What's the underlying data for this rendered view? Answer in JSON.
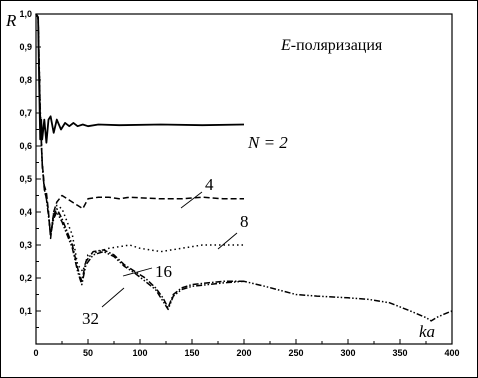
{
  "chart_data": {
    "type": "line",
    "title": "",
    "xlabel": "ka",
    "ylabel": "R",
    "xlim": [
      0,
      400
    ],
    "ylim": [
      0,
      1.0
    ],
    "grid": false,
    "x_ticks": [
      "0",
      "50",
      "100",
      "150",
      "200",
      "250",
      "300",
      "350",
      "400"
    ],
    "y_ticks": [
      "0,1",
      "0,2",
      "0,3",
      "0,4",
      "0,5",
      "0,6",
      "0,7",
      "0,8",
      "0,9",
      "1,0"
    ],
    "annotations": {
      "polarization": "E-поляризация",
      "n2": "N = 2",
      "n4": "4",
      "n8": "8",
      "n16": "16",
      "n32": "32"
    },
    "series": [
      {
        "name": "N = 2",
        "style": "solid",
        "points": [
          [
            0,
            1.0
          ],
          [
            2,
            0.99
          ],
          [
            3,
            0.8
          ],
          [
            4,
            0.62
          ],
          [
            5,
            0.68
          ],
          [
            6,
            0.62
          ],
          [
            8,
            0.68
          ],
          [
            10,
            0.61
          ],
          [
            12,
            0.68
          ],
          [
            14,
            0.69
          ],
          [
            17,
            0.64
          ],
          [
            20,
            0.68
          ],
          [
            24,
            0.65
          ],
          [
            28,
            0.67
          ],
          [
            32,
            0.66
          ],
          [
            36,
            0.67
          ],
          [
            40,
            0.66
          ],
          [
            45,
            0.665
          ],
          [
            50,
            0.66
          ],
          [
            60,
            0.665
          ],
          [
            80,
            0.663
          ],
          [
            120,
            0.665
          ],
          [
            160,
            0.663
          ],
          [
            200,
            0.665
          ]
        ]
      },
      {
        "name": "4",
        "style": "dashed",
        "points": [
          [
            0,
            1.0
          ],
          [
            2,
            0.99
          ],
          [
            4,
            0.7
          ],
          [
            6,
            0.55
          ],
          [
            8,
            0.48
          ],
          [
            10,
            0.46
          ],
          [
            12,
            0.4
          ],
          [
            14,
            0.32
          ],
          [
            17,
            0.4
          ],
          [
            20,
            0.43
          ],
          [
            25,
            0.45
          ],
          [
            30,
            0.44
          ],
          [
            35,
            0.43
          ],
          [
            40,
            0.42
          ],
          [
            45,
            0.41
          ],
          [
            50,
            0.44
          ],
          [
            60,
            0.445
          ],
          [
            70,
            0.445
          ],
          [
            80,
            0.44
          ],
          [
            90,
            0.445
          ],
          [
            100,
            0.443
          ],
          [
            120,
            0.44
          ],
          [
            140,
            0.44
          ],
          [
            160,
            0.445
          ],
          [
            180,
            0.44
          ],
          [
            200,
            0.44
          ]
        ]
      },
      {
        "name": "8",
        "style": "dotted",
        "points": [
          [
            0,
            1.0
          ],
          [
            2,
            0.99
          ],
          [
            4,
            0.72
          ],
          [
            6,
            0.55
          ],
          [
            8,
            0.47
          ],
          [
            10,
            0.45
          ],
          [
            12,
            0.4
          ],
          [
            14,
            0.33
          ],
          [
            17,
            0.4
          ],
          [
            20,
            0.42
          ],
          [
            25,
            0.41
          ],
          [
            30,
            0.37
          ],
          [
            35,
            0.33
          ],
          [
            40,
            0.24
          ],
          [
            45,
            0.22
          ],
          [
            50,
            0.27
          ],
          [
            60,
            0.28
          ],
          [
            70,
            0.29
          ],
          [
            80,
            0.295
          ],
          [
            90,
            0.3
          ],
          [
            100,
            0.29
          ],
          [
            120,
            0.28
          ],
          [
            140,
            0.29
          ],
          [
            160,
            0.3
          ],
          [
            180,
            0.3
          ],
          [
            200,
            0.3
          ]
        ]
      },
      {
        "name": "16",
        "style": "dash-dot",
        "points": [
          [
            0,
            1.0
          ],
          [
            2,
            0.99
          ],
          [
            4,
            0.7
          ],
          [
            6,
            0.55
          ],
          [
            8,
            0.47
          ],
          [
            10,
            0.44
          ],
          [
            12,
            0.39
          ],
          [
            14,
            0.33
          ],
          [
            17,
            0.39
          ],
          [
            20,
            0.41
          ],
          [
            25,
            0.38
          ],
          [
            30,
            0.34
          ],
          [
            35,
            0.3
          ],
          [
            40,
            0.23
          ],
          [
            44,
            0.19
          ],
          [
            48,
            0.25
          ],
          [
            55,
            0.28
          ],
          [
            65,
            0.285
          ],
          [
            75,
            0.27
          ],
          [
            85,
            0.24
          ],
          [
            95,
            0.22
          ],
          [
            105,
            0.2
          ],
          [
            115,
            0.17
          ],
          [
            122,
            0.14
          ],
          [
            127,
            0.11
          ],
          [
            132,
            0.15
          ],
          [
            140,
            0.17
          ],
          [
            150,
            0.18
          ],
          [
            165,
            0.185
          ],
          [
            180,
            0.19
          ],
          [
            200,
            0.19
          ]
        ]
      },
      {
        "name": "32",
        "style": "dash-dot-dot",
        "points": [
          [
            0,
            1.0
          ],
          [
            2,
            0.99
          ],
          [
            4,
            0.7
          ],
          [
            6,
            0.54
          ],
          [
            8,
            0.47
          ],
          [
            10,
            0.44
          ],
          [
            12,
            0.39
          ],
          [
            14,
            0.33
          ],
          [
            17,
            0.38
          ],
          [
            20,
            0.4
          ],
          [
            25,
            0.37
          ],
          [
            30,
            0.33
          ],
          [
            35,
            0.29
          ],
          [
            40,
            0.22
          ],
          [
            44,
            0.18
          ],
          [
            48,
            0.24
          ],
          [
            55,
            0.27
          ],
          [
            65,
            0.28
          ],
          [
            75,
            0.265
          ],
          [
            85,
            0.235
          ],
          [
            95,
            0.215
          ],
          [
            105,
            0.19
          ],
          [
            115,
            0.165
          ],
          [
            122,
            0.13
          ],
          [
            127,
            0.105
          ],
          [
            132,
            0.145
          ],
          [
            140,
            0.165
          ],
          [
            150,
            0.175
          ],
          [
            165,
            0.18
          ],
          [
            180,
            0.185
          ],
          [
            200,
            0.19
          ],
          [
            220,
            0.175
          ],
          [
            250,
            0.15
          ],
          [
            270,
            0.145
          ],
          [
            300,
            0.14
          ],
          [
            320,
            0.135
          ],
          [
            340,
            0.125
          ],
          [
            360,
            0.1
          ],
          [
            375,
            0.08
          ],
          [
            380,
            0.07
          ],
          [
            385,
            0.08
          ],
          [
            392,
            0.09
          ],
          [
            400,
            0.1
          ]
        ]
      }
    ]
  }
}
